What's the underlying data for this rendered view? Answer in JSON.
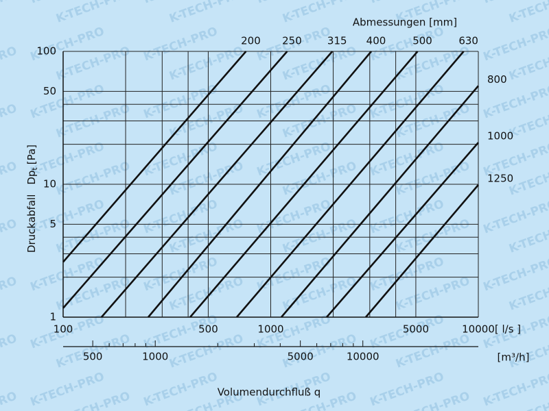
{
  "chart_data": {
    "type": "line",
    "title": "Abmessungen [mm]",
    "watermark": "K-TECH-PRO",
    "x_label": "Volumendurchfluß q",
    "x_unit": "[ l/s ]",
    "x2_unit": "[m³/h]",
    "y_label": {
      "name": "Druckabfall",
      "symbol": "Dp",
      "subscript": "t",
      "unit": "[Pa]"
    },
    "xscale": "log",
    "yscale": "log",
    "x2scale": "log",
    "xlim": [
      100,
      10000
    ],
    "ylim": [
      1,
      100
    ],
    "x2lim": [
      360,
      36000
    ],
    "xticks": [
      100,
      500,
      1000,
      5000,
      10000
    ],
    "yticks": [
      1,
      5,
      10,
      50,
      100
    ],
    "x2ticks": [
      500,
      1000,
      5000,
      10000
    ],
    "x2minor": [
      600,
      700,
      800,
      900,
      2000,
      3000,
      4000,
      6000,
      7000,
      8000,
      9000
    ],
    "xgrid": [
      200,
      300,
      400,
      2000,
      3000,
      4000
    ],
    "ygrid": [
      2,
      3,
      4,
      20,
      30,
      40
    ],
    "grid": true,
    "series": [
      {
        "name": "200",
        "color": "#111111",
        "x": [
          100,
          760
        ],
        "values": [
          2.6,
          100
        ]
      },
      {
        "name": "250",
        "color": "#111111",
        "x": [
          100,
          1200
        ],
        "values": [
          1.17,
          100
        ]
      },
      {
        "name": "315",
        "color": "#111111",
        "x": [
          153,
          1980
        ],
        "values": [
          1,
          100
        ]
      },
      {
        "name": "400",
        "color": "#111111",
        "x": [
          257,
          3050
        ],
        "values": [
          1,
          100
        ]
      },
      {
        "name": "500",
        "color": "#111111",
        "x": [
          409,
          5100
        ],
        "values": [
          1,
          100
        ]
      },
      {
        "name": "630",
        "color": "#111111",
        "x": [
          686,
          8500
        ],
        "values": [
          1,
          100
        ]
      },
      {
        "name": "800",
        "color": "#111111",
        "x": [
          1125,
          10000
        ],
        "values": [
          1,
          55
        ]
      },
      {
        "name": "1000",
        "color": "#111111",
        "x": [
          1860,
          10000
        ],
        "values": [
          1,
          20.6
        ]
      },
      {
        "name": "1250",
        "color": "#111111",
        "x": [
          2870,
          10000
        ],
        "values": [
          1,
          9.9
        ]
      }
    ]
  }
}
